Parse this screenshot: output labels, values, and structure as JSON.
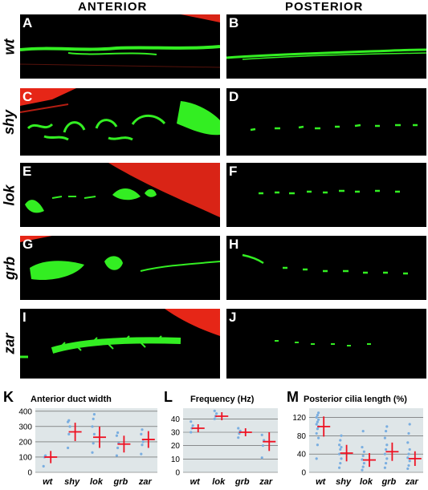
{
  "headers": {
    "anterior": "ANTERIOR",
    "posterior": "POSTERIOR"
  },
  "rows": [
    {
      "label": "wt",
      "left": "A",
      "right": "B"
    },
    {
      "label": "shy",
      "left": "C",
      "right": "D"
    },
    {
      "label": "lok",
      "left": "E",
      "right": "F"
    },
    {
      "label": "grb",
      "left": "G",
      "right": "H"
    },
    {
      "label": "zar",
      "left": "I",
      "right": "J"
    }
  ],
  "colors": {
    "green": "#33ee22",
    "red": "#ff2a1a",
    "chart_bg": "#dfe6e8",
    "dot": "#7aaee0",
    "marker": "#ee1122"
  },
  "chart_data": [
    {
      "letter": "K",
      "type": "scatter",
      "title": "Anterior duct width",
      "categories": [
        "wt",
        "shy",
        "lok",
        "grb",
        "zar"
      ],
      "yticks": [
        0,
        100,
        200,
        300,
        400
      ],
      "ylim": [
        0,
        420
      ],
      "means": [
        100,
        265,
        230,
        185,
        215
      ],
      "errors": [
        40,
        60,
        70,
        55,
        55
      ],
      "points": [
        [
          40,
          100,
          110
        ],
        [
          160,
          250,
          300,
          330,
          340
        ],
        [
          130,
          190,
          250,
          300,
          350,
          380
        ],
        [
          110,
          160,
          190,
          240,
          260
        ],
        [
          120,
          180,
          200,
          250,
          280
        ]
      ]
    },
    {
      "letter": "L",
      "type": "scatter",
      "title": "Frequency (Hz)",
      "categories": [
        "wt",
        "lok",
        "grb",
        "zar"
      ],
      "yticks": [
        0,
        10,
        20,
        30,
        40
      ],
      "ylim": [
        0,
        48
      ],
      "means": [
        33,
        42,
        30,
        23
      ],
      "errors": [
        3,
        3,
        3,
        7
      ],
      "points": [
        [
          30,
          33,
          35,
          38
        ],
        [
          40,
          42,
          44,
          46
        ],
        [
          26,
          29,
          31,
          33
        ],
        [
          11,
          20,
          24,
          28
        ]
      ]
    },
    {
      "letter": "M",
      "type": "scatter",
      "title": "Posterior cilia length (%)",
      "categories": [
        "wt",
        "shy",
        "lok",
        "grb",
        "zar"
      ],
      "yticks": [
        0,
        40,
        80,
        120
      ],
      "ylim": [
        0,
        140
      ],
      "means": [
        100,
        42,
        27,
        45,
        30
      ],
      "errors": [
        22,
        18,
        15,
        20,
        16
      ],
      "points": [
        [
          30,
          60,
          75,
          85,
          95,
          100,
          105,
          110,
          115,
          120,
          125,
          130
        ],
        [
          10,
          20,
          30,
          40,
          50,
          55,
          60,
          70,
          80
        ],
        [
          5,
          12,
          20,
          28,
          36,
          45,
          55,
          90
        ],
        [
          10,
          20,
          30,
          40,
          50,
          60,
          75,
          90,
          100
        ],
        [
          8,
          15,
          25,
          32,
          40,
          50,
          65,
          85,
          105
        ]
      ]
    }
  ]
}
